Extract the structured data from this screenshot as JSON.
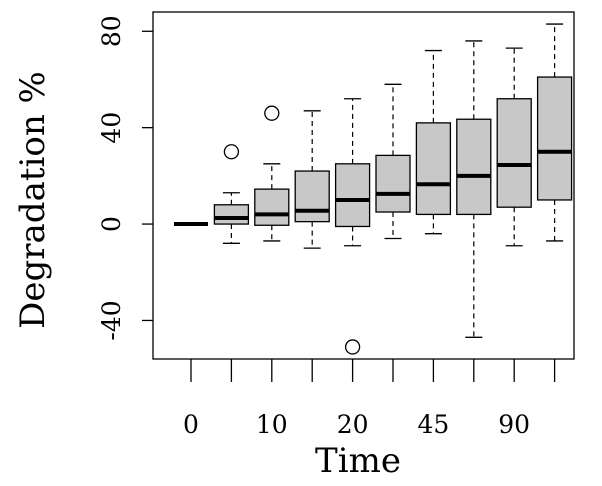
{
  "chart_data": {
    "type": "boxplot",
    "title": "",
    "xlabel": "Time",
    "ylabel": "Degradation %",
    "ylim": [
      -56,
      88
    ],
    "yticks": [
      -40,
      0,
      40,
      80
    ],
    "xtick_labels": [
      "0",
      "",
      "10",
      "",
      "20",
      "",
      "45",
      "",
      "90",
      ""
    ],
    "legend": "none",
    "grid": false,
    "box_color": "#c8c8c8",
    "boxes": [
      {
        "min": 0,
        "q1": 0,
        "median": 0,
        "q3": 0,
        "max": 0,
        "outliers": []
      },
      {
        "min": -8,
        "q1": 0,
        "median": 2.5,
        "q3": 8,
        "max": 13,
        "outliers": [
          30
        ]
      },
      {
        "min": -7,
        "q1": -0.5,
        "median": 4,
        "q3": 14.5,
        "max": 25,
        "outliers": [
          46
        ]
      },
      {
        "min": -10,
        "q1": 1,
        "median": 5.5,
        "q3": 22,
        "max": 47,
        "outliers": []
      },
      {
        "min": -9,
        "q1": -1,
        "median": 10,
        "q3": 25,
        "max": 52,
        "outliers": [
          -51
        ]
      },
      {
        "min": -6,
        "q1": 5,
        "median": 12.5,
        "q3": 28.5,
        "max": 58,
        "outliers": []
      },
      {
        "min": -4,
        "q1": 4,
        "median": 16.5,
        "q3": 42,
        "max": 72,
        "outliers": []
      },
      {
        "min": -47,
        "q1": 4,
        "median": 20,
        "q3": 43.5,
        "max": 76,
        "outliers": []
      },
      {
        "min": -9,
        "q1": 7,
        "median": 24.5,
        "q3": 52,
        "max": 73,
        "outliers": []
      },
      {
        "min": -7,
        "q1": 10,
        "median": 30,
        "q3": 61,
        "max": 83,
        "outliers": []
      }
    ]
  }
}
